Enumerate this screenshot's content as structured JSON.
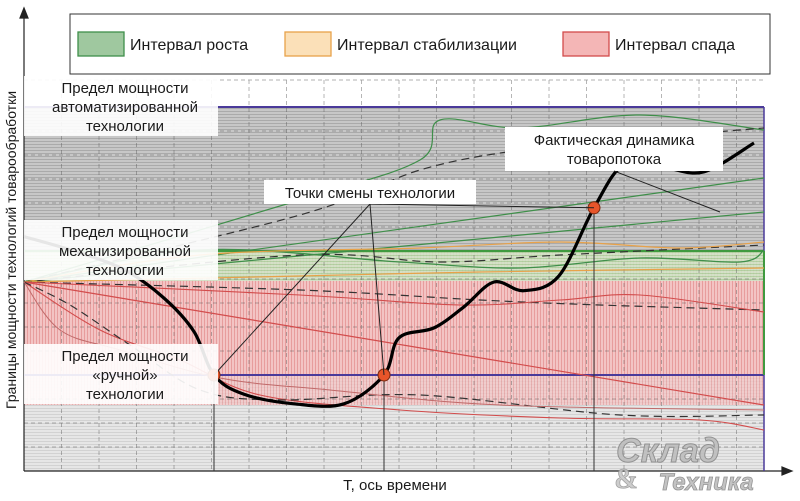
{
  "chart_data": {
    "type": "line",
    "title": "",
    "xlabel": "Т, ось времени",
    "ylabel": "Границы мощности технологий товарообработки",
    "legend": {
      "placement": "top",
      "items": [
        {
          "label": "Интервал роста",
          "color": "#3f8f4a",
          "fill": "#9fc89f"
        },
        {
          "label": "Интервал стабилизации",
          "color": "#e8a24a",
          "fill": "#fbe0b8"
        },
        {
          "label": "Интервал спада",
          "color": "#d24c4c",
          "fill": "#f4b6b6"
        }
      ]
    },
    "capacity_limits": [
      {
        "label_lines": [
          "Предел мощности",
          "автоматизированной",
          "технологии"
        ],
        "level": 3,
        "color": "#4a3a9a"
      },
      {
        "label_lines": [
          "Предел мощности",
          "механизированной",
          "технологии"
        ],
        "level": 2,
        "color": "#3f9a3f"
      },
      {
        "label_lines": [
          "Предел мощности",
          "«ручной»",
          "технологии"
        ],
        "level": 1,
        "color": "#4a3a9a"
      }
    ],
    "annotations": {
      "switch_points": "Точки смены технологии",
      "actual_flow": [
        "Фактическая динамика",
        "товаропотока"
      ]
    },
    "switch_points_t": [
      1.9,
      3.6,
      5.7
    ],
    "series": [
      {
        "name": "Фактическая динамика товаропотока",
        "color": "#000000",
        "points": [
          [
            0,
            2.1
          ],
          [
            0.5,
            2.0
          ],
          [
            1.0,
            1.85
          ],
          [
            1.4,
            1.62
          ],
          [
            1.7,
            1.35
          ],
          [
            1.9,
            1.0
          ],
          [
            2.2,
            0.8
          ],
          [
            2.7,
            0.7
          ],
          [
            3.2,
            0.7
          ],
          [
            3.6,
            1.0
          ],
          [
            3.75,
            1.3
          ],
          [
            4.1,
            1.38
          ],
          [
            4.4,
            1.55
          ],
          [
            4.7,
            1.75
          ],
          [
            5.0,
            1.68
          ],
          [
            5.35,
            1.8
          ],
          [
            5.7,
            2.3
          ],
          [
            6.0,
            2.6
          ],
          [
            6.4,
            2.58
          ],
          [
            6.8,
            2.55
          ],
          [
            7.3,
            2.75
          ]
        ]
      }
    ],
    "ylim": [
      0,
      4.1
    ],
    "xlim": [
      0,
      7.4
    ],
    "grid": true,
    "watermark": {
      "line1": "Склад",
      "line2": "Техника",
      "amp": "&"
    }
  }
}
